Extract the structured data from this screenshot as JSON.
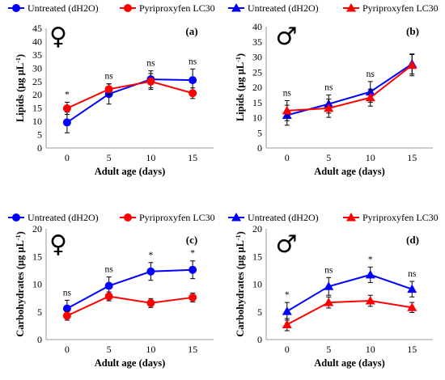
{
  "chart_data": [
    {
      "type": "line",
      "panel_label": "(a)",
      "sex_symbol": "♀",
      "xlabel": "Adult age (days)",
      "ylabel": "Lipids (μg μL",
      "ylabel_sup": "-1",
      "ylabel_close": ")",
      "categories": [
        "0",
        "5",
        "10",
        "15"
      ],
      "ylim": [
        0,
        45
      ],
      "yticks": [
        0,
        5,
        10,
        15,
        20,
        25,
        30,
        35,
        40,
        45
      ],
      "grid": false,
      "legend_position": "top",
      "marker": "circle",
      "series": [
        {
          "name": "Untreated (dH2O)",
          "color": "#0000ff",
          "values": [
            9.6,
            20.3,
            25.8,
            25.5
          ],
          "errors": [
            3.9,
            3.8,
            3.2,
            4.2
          ]
        },
        {
          "name": "Pyriproxyfen LC30",
          "color": "#ff0000",
          "values": [
            14.9,
            22.1,
            25.0,
            20.6
          ],
          "errors": [
            2.3,
            2.0,
            3.0,
            2.0
          ]
        }
      ],
      "annotations": [
        "*",
        "ns",
        "ns",
        "ns"
      ]
    },
    {
      "type": "line",
      "panel_label": "(b)",
      "sex_symbol": "♂",
      "xlabel": "Adult age (days)",
      "ylabel": "Lipids (μg μL",
      "ylabel_sup": "-1",
      "ylabel_close": ")",
      "categories": [
        "0",
        "5",
        "10",
        "15"
      ],
      "ylim": [
        0,
        40
      ],
      "yticks": [
        0,
        5,
        10,
        15,
        20,
        25,
        30,
        35,
        40
      ],
      "grid": false,
      "legend_position": "top",
      "marker": "triangle",
      "series": [
        {
          "name": "Untreated (dH2O)",
          "color": "#0000ff",
          "values": [
            10.8,
            14.5,
            18.5,
            27.7
          ],
          "errors": [
            3.3,
            3.0,
            3.4,
            3.3
          ]
        },
        {
          "name": "Pyriproxyfen LC30",
          "color": "#ff0000",
          "values": [
            12.3,
            13.1,
            16.6,
            27.3
          ],
          "errors": [
            3.3,
            3.0,
            2.8,
            3.5
          ]
        }
      ],
      "annotations": [
        "ns",
        "ns",
        "ns",
        ""
      ]
    },
    {
      "type": "line",
      "panel_label": "(c)",
      "sex_symbol": "♀",
      "xlabel": "Adult age (days)",
      "ylabel": "Carbohydrates (μg μL",
      "ylabel_sup": "-1",
      "ylabel_close": ")",
      "categories": [
        "0",
        "5",
        "10",
        "15"
      ],
      "ylim": [
        0,
        20
      ],
      "yticks": [
        0,
        5,
        10,
        15,
        20
      ],
      "grid": false,
      "legend_position": "top",
      "marker": "circle",
      "series": [
        {
          "name": "Untreated (dH2O)",
          "color": "#0000ff",
          "values": [
            5.6,
            9.7,
            12.3,
            12.6
          ],
          "errors": [
            1.5,
            1.6,
            1.6,
            1.6
          ]
        },
        {
          "name": "Pyriproxyfen LC30",
          "color": "#ff0000",
          "values": [
            4.3,
            7.8,
            6.6,
            7.6
          ],
          "errors": [
            0.8,
            0.8,
            0.8,
            0.8
          ]
        }
      ],
      "annotations": [
        "ns",
        "ns",
        "*",
        "*"
      ]
    },
    {
      "type": "line",
      "panel_label": "(d)",
      "sex_symbol": "♂",
      "xlabel": "Adult age (days)",
      "ylabel": "Carbohydrates (μg μL",
      "ylabel_sup": "-1",
      "ylabel_close": ")",
      "categories": [
        "0",
        "5",
        "10",
        "15"
      ],
      "ylim": [
        0,
        20
      ],
      "yticks": [
        0,
        5,
        10,
        15,
        20
      ],
      "grid": false,
      "legend_position": "top",
      "marker": "triangle",
      "series": [
        {
          "name": "Untreated (dH2O)",
          "color": "#0000ff",
          "values": [
            5.1,
            9.6,
            11.7,
            9.1
          ],
          "errors": [
            1.6,
            1.6,
            1.4,
            1.4
          ]
        },
        {
          "name": "Pyriproxyfen LC30",
          "color": "#ff0000",
          "values": [
            2.7,
            6.7,
            7.0,
            5.8
          ],
          "errors": [
            1.1,
            1.0,
            1.0,
            0.9
          ]
        }
      ],
      "annotations": [
        "*",
        "ns",
        "*",
        "ns"
      ]
    }
  ]
}
